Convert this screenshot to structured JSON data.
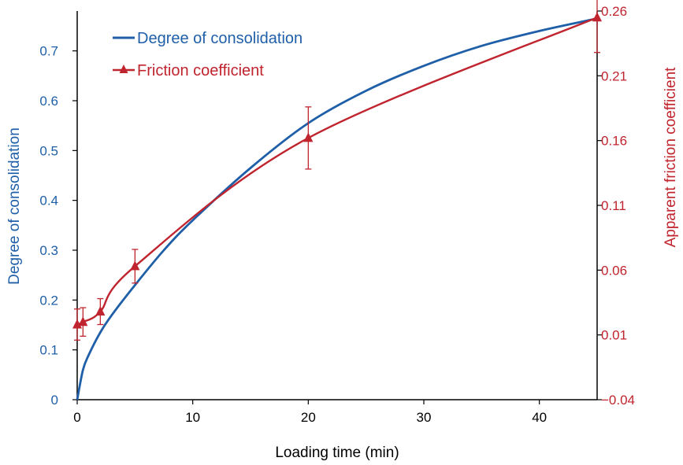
{
  "colors": {
    "left": "#1f5fa8",
    "right": "#c0242e",
    "axis": "#000000"
  },
  "chart_data": {
    "type": "line",
    "grid": false,
    "legend_position": "top-left",
    "xlabel": "Loading time (min)",
    "ylabel_left": "Degree of consolidation",
    "ylabel_right": "Apparent friction coefficient",
    "xlim": [
      0,
      45
    ],
    "ylim_left": [
      0,
      0.78
    ],
    "ylim_right": [
      -0.04,
      0.26
    ],
    "x_ticks": [
      0,
      10,
      20,
      30,
      40
    ],
    "y_ticks_left": [
      0,
      0.1,
      0.2,
      0.3,
      0.4,
      0.5,
      0.6,
      0.7
    ],
    "y_ticks_right": [
      -0.04,
      0.01,
      0.06,
      0.11,
      0.16,
      0.21,
      0.26
    ],
    "x_tick_labels": [
      "0",
      "10",
      "20",
      "30",
      "40"
    ],
    "y_tick_labels_left": [
      "0",
      "0.1",
      "0.2",
      "0.3",
      "0.4",
      "0.5",
      "0.6",
      "0.7"
    ],
    "y_tick_labels_right": [
      "−0.04",
      "0.01",
      "0.06",
      "0.11",
      "0.16",
      "0.21",
      "0.26"
    ],
    "series": [
      {
        "name": "Degree of consolidation",
        "axis": "left",
        "marker": "none",
        "x": [
          0,
          0.5,
          1,
          2,
          3,
          5,
          7.5,
          10,
          15,
          20,
          25,
          30,
          35,
          40,
          45
        ],
        "y": [
          0,
          0.06,
          0.09,
          0.135,
          0.17,
          0.23,
          0.3,
          0.36,
          0.465,
          0.555,
          0.62,
          0.67,
          0.71,
          0.74,
          0.765
        ]
      },
      {
        "name": "Friction coefficient",
        "axis": "right",
        "marker": "triangle",
        "x": [
          0,
          0.5,
          2,
          5,
          20,
          45
        ],
        "y": [
          0.018,
          0.02,
          0.028,
          0.063,
          0.162,
          0.255
        ],
        "err": [
          0.012,
          0.011,
          0.01,
          0.013,
          0.024,
          0.027
        ]
      }
    ]
  }
}
